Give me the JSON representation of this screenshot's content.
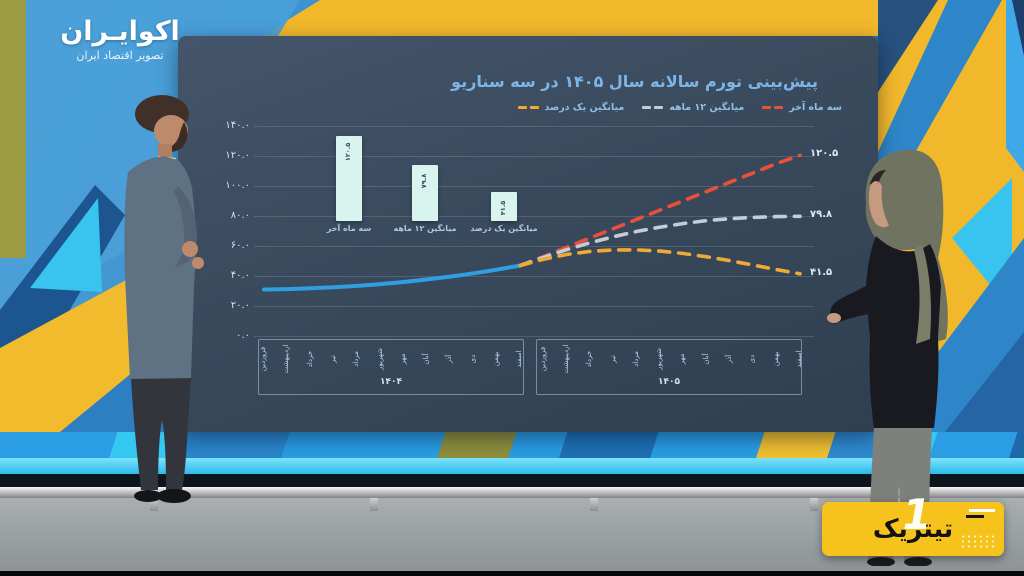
{
  "channel": {
    "name": "اکوایـران",
    "tagline": "تصویر اقتصاد ایران"
  },
  "badge": {
    "label": "تیتریک",
    "numeral": "1"
  },
  "chart_data": {
    "type": "line",
    "title": "پیش‌بینی تورم سالانه سال ۱۴۰۵ در سه سناریو",
    "ylim": [
      0,
      140
    ],
    "grid": true,
    "legend_position": "top",
    "y_ticks": [
      "۱۴۰.۰",
      "۱۲۰.۰",
      "۱۰۰.۰",
      "۸۰.۰",
      "۶۰.۰",
      "۴۰.۰",
      "۲۰.۰",
      "۰.۰"
    ],
    "months": [
      "فروردین",
      "اردیبهشت",
      "خرداد",
      "تیر",
      "مرداد",
      "شهریور",
      "مهر",
      "آبان",
      "آذر",
      "دی",
      "بهمن",
      "اسفند"
    ],
    "x_groups": [
      {
        "year_label": "۱۴۰۴"
      },
      {
        "year_label": "۱۴۰۵"
      }
    ],
    "legend": [
      {
        "label": "سه ماه آخر",
        "color": "#e8503a",
        "style": "dashed"
      },
      {
        "label": "میانگین ۱۲ ماهه",
        "color": "#c2cdd9",
        "style": "dashed"
      },
      {
        "label": "میانگین یک درصد",
        "color": "#eeaa33",
        "style": "dashed"
      }
    ],
    "inset_bar": {
      "type": "bar",
      "categories": [
        "سه ماه آخر",
        "میانگین ۱۲ ماهه",
        "میانگین یک درصد"
      ],
      "values": [
        120.5,
        79.8,
        41.5
      ],
      "value_labels": [
        "۱۲۰.۵",
        "۷۹.۸",
        "۴۱.۵"
      ],
      "bar_color": "#d9f3ee"
    },
    "series": [
      {
        "name": "historical",
        "color": "#2f9fe0",
        "style": "solid",
        "start_index": 0,
        "values": [
          31,
          31.3,
          31.8,
          32.5,
          33.4,
          34.6,
          36,
          37.7,
          39.6,
          41.8,
          44.3,
          47
        ]
      },
      {
        "name": "سه ماه آخر",
        "color": "#e8503a",
        "style": "dashed",
        "start_index": 11,
        "values": [
          47,
          53,
          59.2,
          65.4,
          71.6,
          77.8,
          84,
          90.2,
          96.4,
          102.6,
          108.8,
          115,
          120.5
        ]
      },
      {
        "name": "میانگین ۱۲ ماهه",
        "color": "#c2cdd9",
        "style": "dashed",
        "start_index": 11,
        "values": [
          47,
          52.5,
          57.6,
          62.2,
          66.2,
          69.7,
          72.6,
          75,
          76.9,
          78.2,
          79.1,
          79.6,
          79.8
        ]
      },
      {
        "name": "میانگین یک درصد",
        "color": "#eeaa33",
        "style": "dashed",
        "start_index": 11,
        "values": [
          47,
          51.2,
          54.4,
          56.4,
          57.4,
          57.4,
          56.6,
          55,
          52.8,
          50.2,
          47.3,
          44.3,
          41.5
        ]
      }
    ],
    "end_labels": [
      {
        "text": "۱۲۰.۵",
        "value": 120.5
      },
      {
        "text": "۷۹.۸",
        "value": 79.8
      },
      {
        "text": "۴۱.۵",
        "value": 41.5
      }
    ]
  }
}
